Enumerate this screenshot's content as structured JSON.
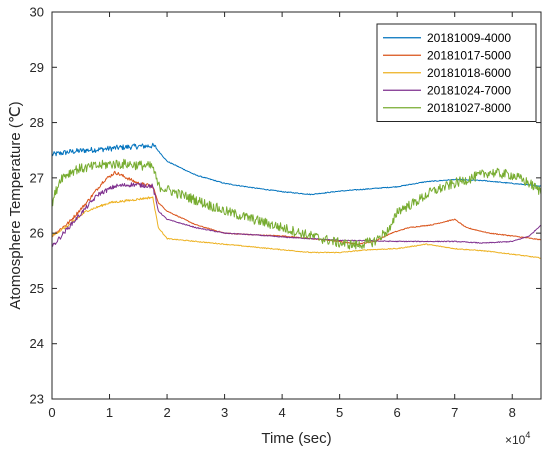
{
  "chart_data": {
    "type": "line",
    "xlabel": "Time (sec)",
    "ylabel": "Atomosphere Temperature (℃)",
    "xlim": [
      0,
      85000
    ],
    "ylim": [
      23,
      30
    ],
    "x_ticks": [
      0,
      10000,
      20000,
      30000,
      40000,
      50000,
      60000,
      70000,
      80000
    ],
    "x_tick_labels": [
      "0",
      "1",
      "2",
      "3",
      "4",
      "5",
      "6",
      "7",
      "8"
    ],
    "y_ticks": [
      23,
      24,
      25,
      26,
      27,
      28,
      29,
      30
    ],
    "y_tick_labels": [
      "23",
      "24",
      "25",
      "26",
      "27",
      "28",
      "29",
      "30"
    ],
    "x_multiplier": {
      "base": "×10",
      "exponent": "4"
    },
    "grid": false,
    "legend_position": "top-right",
    "series": [
      {
        "name": "20181009-4000",
        "color": "#0072BD",
        "noise": 0.05,
        "noise_until": 18000,
        "x": [
          0,
          3000,
          6000,
          9000,
          12000,
          15000,
          17500,
          18000,
          20000,
          25000,
          30000,
          35000,
          40000,
          45000,
          50000,
          55000,
          60000,
          65000,
          70000,
          75000,
          80000,
          85000
        ],
        "y": [
          27.42,
          27.47,
          27.5,
          27.52,
          27.55,
          27.57,
          27.58,
          27.55,
          27.3,
          27.05,
          26.9,
          26.82,
          26.75,
          26.7,
          26.76,
          26.8,
          26.84,
          26.93,
          26.97,
          26.95,
          26.9,
          26.85
        ]
      },
      {
        "name": "20181017-5000",
        "color": "#D95319",
        "noise": 0.03,
        "noise_until": 18000,
        "x": [
          0,
          3000,
          6000,
          9000,
          11000,
          13000,
          15000,
          17500,
          18500,
          20000,
          25000,
          30000,
          35000,
          40000,
          45000,
          50000,
          53000,
          56000,
          59000,
          62000,
          66000,
          68000,
          70000,
          72000,
          76000,
          80000,
          85000
        ],
        "y": [
          25.95,
          26.2,
          26.55,
          26.95,
          27.1,
          27.0,
          26.9,
          26.85,
          26.55,
          26.4,
          26.15,
          26.0,
          25.97,
          25.95,
          25.9,
          25.85,
          25.8,
          25.85,
          26.0,
          26.1,
          26.15,
          26.2,
          26.25,
          26.1,
          26.0,
          25.95,
          25.88
        ]
      },
      {
        "name": "20181018-6000",
        "color": "#EDB120",
        "noise": 0.02,
        "noise_until": 18000,
        "x": [
          0,
          3000,
          6000,
          10000,
          14000,
          17500,
          18500,
          20000,
          25000,
          30000,
          35000,
          40000,
          45000,
          50000,
          55000,
          60000,
          65000,
          70000,
          75000,
          80000,
          85000
        ],
        "y": [
          25.95,
          26.15,
          26.4,
          26.55,
          26.6,
          26.65,
          26.1,
          25.9,
          25.85,
          25.8,
          25.75,
          25.7,
          25.65,
          25.65,
          25.7,
          25.72,
          25.8,
          25.72,
          25.68,
          25.62,
          25.55
        ]
      },
      {
        "name": "20181024-7000",
        "color": "#7E2F8E",
        "noise": 0.04,
        "noise_until": 18000,
        "x": [
          0,
          2000,
          5000,
          8000,
          11000,
          14000,
          17500,
          18500,
          20000,
          25000,
          30000,
          35000,
          40000,
          45000,
          50000,
          55000,
          60000,
          65000,
          70000,
          75000,
          80000,
          83000,
          85000
        ],
        "y": [
          25.75,
          26.0,
          26.35,
          26.7,
          26.85,
          26.88,
          26.85,
          26.4,
          26.25,
          26.1,
          26.0,
          25.97,
          25.93,
          25.9,
          25.87,
          25.86,
          25.85,
          25.85,
          25.85,
          25.82,
          25.85,
          25.95,
          26.15
        ]
      },
      {
        "name": "20181027-8000",
        "color": "#77AC30",
        "noise": 0.09,
        "noise_until": 85000,
        "x": [
          0,
          1500,
          4000,
          7000,
          10000,
          13000,
          16000,
          17500,
          18500,
          21000,
          25000,
          30000,
          35000,
          40000,
          45000,
          50000,
          53000,
          56000,
          59000,
          60000,
          63000,
          66000,
          70000,
          73000,
          76000,
          80000,
          83000,
          85000
        ],
        "y": [
          26.55,
          27.0,
          27.15,
          27.2,
          27.25,
          27.25,
          27.22,
          27.2,
          26.85,
          26.75,
          26.6,
          26.4,
          26.25,
          26.1,
          25.95,
          25.82,
          25.78,
          25.85,
          26.1,
          26.4,
          26.55,
          26.75,
          26.9,
          27.0,
          27.1,
          27.05,
          26.9,
          26.75
        ]
      }
    ]
  }
}
